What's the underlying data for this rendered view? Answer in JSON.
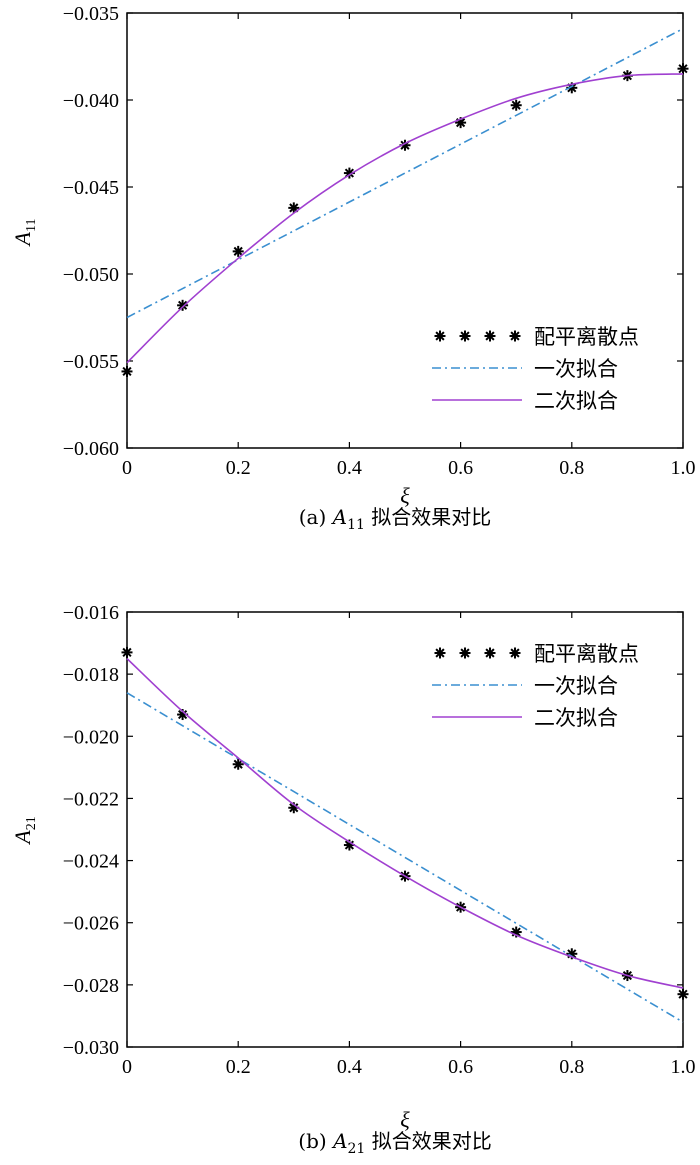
{
  "chart_data": [
    {
      "type": "scatter",
      "caption": {
        "prefix": "(a) ",
        "var": "A",
        "var_sub": "11",
        "suffix": " 拟合效果对比"
      },
      "xlabel": "ξ",
      "ylabel": {
        "main": "A",
        "sub": "11"
      },
      "xlim": [
        0,
        1
      ],
      "ylim": [
        -0.06,
        -0.035
      ],
      "xticks": [
        "0",
        "0.2",
        "0.4",
        "0.6",
        "0.8",
        "1.0"
      ],
      "yticks": [
        "−0.035",
        "−0.040",
        "−0.045",
        "−0.050",
        "−0.055",
        "−0.060"
      ],
      "ytick_values": [
        -0.035,
        -0.04,
        -0.045,
        -0.05,
        -0.055,
        -0.06
      ],
      "xtick_values": [
        0,
        0.2,
        0.4,
        0.6,
        0.8,
        1.0
      ],
      "legend_position": "bottom-right",
      "series": [
        {
          "name": "配平离散点",
          "kind": "points",
          "color": "#000000",
          "x": [
            0,
            0.1,
            0.2,
            0.3,
            0.4,
            0.5,
            0.6,
            0.7,
            0.8,
            0.9,
            1.0
          ],
          "y": [
            -0.0556,
            -0.0518,
            -0.0487,
            -0.0462,
            -0.0442,
            -0.0426,
            -0.0413,
            -0.0403,
            -0.0393,
            -0.0386,
            -0.0382
          ]
        },
        {
          "name": "一次拟合",
          "kind": "dashdot",
          "color": "#3a8fd0",
          "x": [
            0,
            1.0
          ],
          "y": [
            -0.0525,
            -0.0359
          ]
        },
        {
          "name": "二次拟合",
          "kind": "solid",
          "color": "#a040d0",
          "x": [
            0,
            0.1,
            0.2,
            0.3,
            0.4,
            0.5,
            0.6,
            0.7,
            0.8,
            0.9,
            1.0
          ],
          "y": [
            -0.0551,
            -0.0519,
            -0.0491,
            -0.0465,
            -0.0443,
            -0.0425,
            -0.0411,
            -0.0399,
            -0.0391,
            -0.0386,
            -0.0385
          ]
        }
      ]
    },
    {
      "type": "scatter",
      "caption": {
        "prefix": "(b) ",
        "var": "A",
        "var_sub": "21",
        "suffix": " 拟合效果对比"
      },
      "xlabel": "ξ",
      "ylabel": {
        "main": "A",
        "sub": "21"
      },
      "xlim": [
        0,
        1
      ],
      "ylim": [
        -0.03,
        -0.016
      ],
      "xticks": [
        "0",
        "0.2",
        "0.4",
        "0.6",
        "0.8",
        "1.0"
      ],
      "yticks": [
        "−0.016",
        "−0.018",
        "−0.020",
        "−0.022",
        "−0.024",
        "−0.026",
        "−0.028",
        "−0.030"
      ],
      "ytick_values": [
        -0.016,
        -0.018,
        -0.02,
        -0.022,
        -0.024,
        -0.026,
        -0.028,
        -0.03
      ],
      "xtick_values": [
        0,
        0.2,
        0.4,
        0.6,
        0.8,
        1.0
      ],
      "legend_position": "top-right",
      "series": [
        {
          "name": "配平离散点",
          "kind": "points",
          "color": "#000000",
          "x": [
            0,
            0.1,
            0.2,
            0.3,
            0.4,
            0.5,
            0.6,
            0.7,
            0.8,
            0.9,
            1.0
          ],
          "y": [
            -0.0173,
            -0.0193,
            -0.0209,
            -0.0223,
            -0.0235,
            -0.0245,
            -0.0255,
            -0.0263,
            -0.027,
            -0.0277,
            -0.0283
          ]
        },
        {
          "name": "一次拟合",
          "kind": "dashdot",
          "color": "#3a8fd0",
          "x": [
            0,
            1.0
          ],
          "y": [
            -0.0186,
            -0.0292
          ]
        },
        {
          "name": "二次拟合",
          "kind": "solid",
          "color": "#a040d0",
          "x": [
            0,
            0.1,
            0.2,
            0.3,
            0.4,
            0.5,
            0.6,
            0.7,
            0.8,
            0.9,
            1.0
          ],
          "y": [
            -0.0175,
            -0.0192,
            -0.0207,
            -0.0222,
            -0.0234,
            -0.0245,
            -0.0255,
            -0.0264,
            -0.0271,
            -0.0277,
            -0.0281
          ]
        }
      ]
    }
  ]
}
